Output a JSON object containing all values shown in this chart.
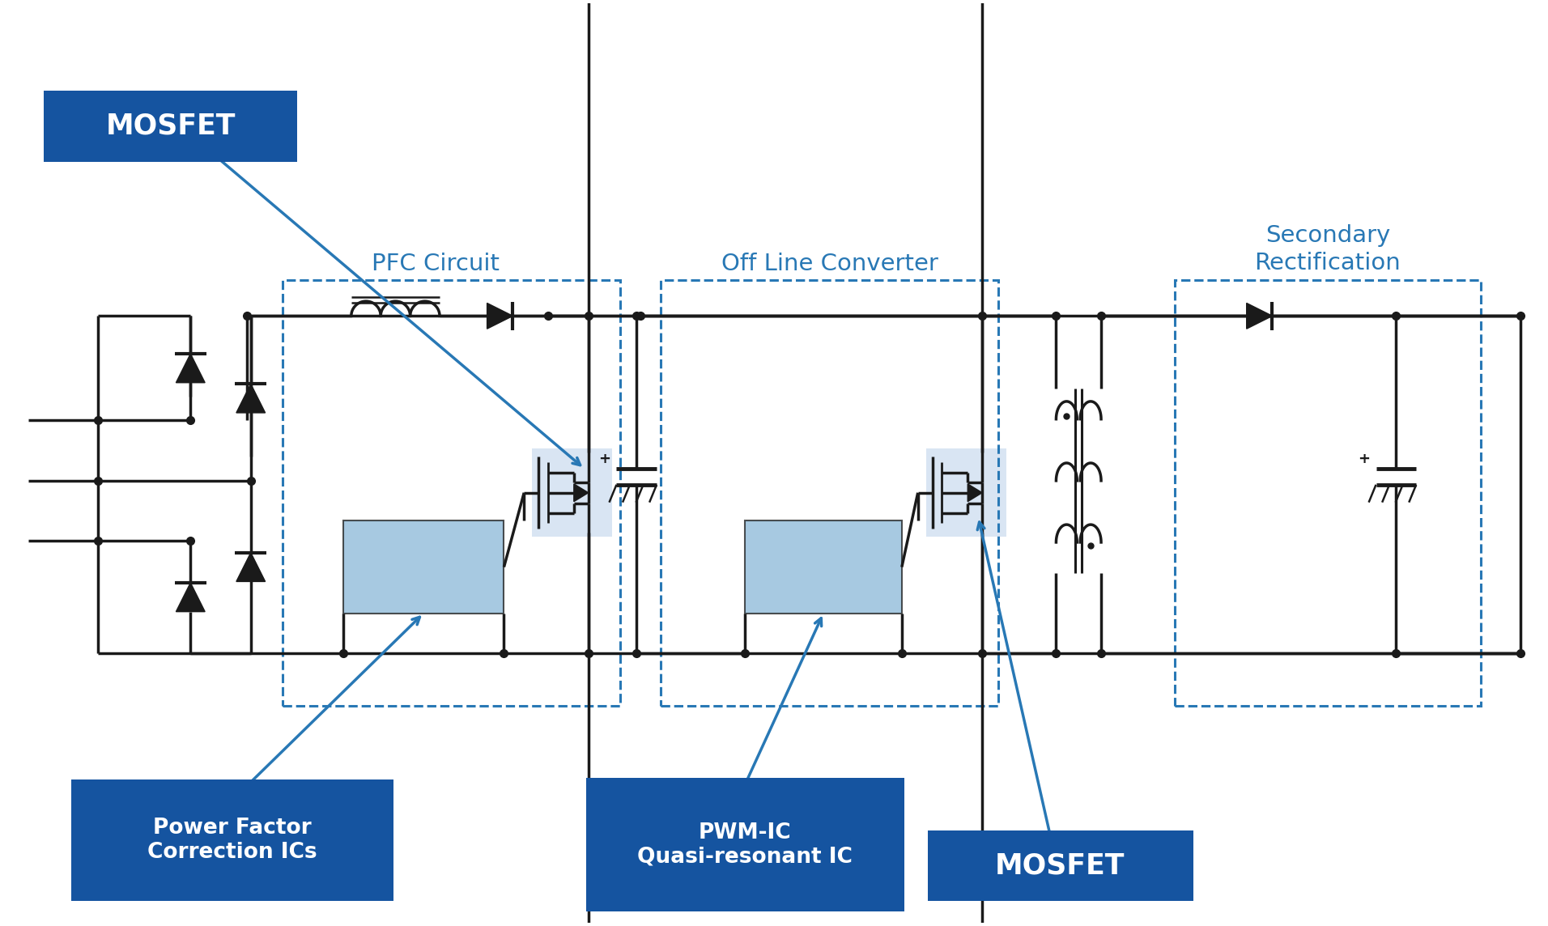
{
  "bg_color": "#ffffff",
  "lc": "#1a1a1a",
  "bc": "#2878b5",
  "dark_blue": "#1554a0",
  "mosfet_bg": "#c5d8ed",
  "ic_bg": "#8ab8d8",
  "labels": {
    "mosfet_top": "MOSFET",
    "pfc": "PFC Circuit",
    "olc": "Off Line Converter",
    "sec": "Secondary\nRectification",
    "pf_ic": "Power Factor\nCorrection ICs",
    "pwm": "PWM-IC\nQuasi-resonant IC",
    "mosfet_bot": "MOSFET"
  },
  "figsize": [
    19.12,
    11.44
  ],
  "dpi": 100
}
